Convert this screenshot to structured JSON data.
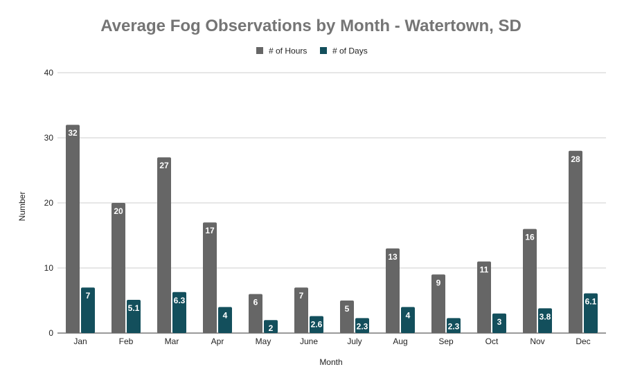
{
  "chart_data": {
    "type": "bar",
    "title": "Average Fog Observations by Month - Watertown, SD",
    "xlabel": "Month",
    "ylabel": "Number",
    "categories": [
      "Jan",
      "Feb",
      "Mar",
      "Apr",
      "May",
      "June",
      "July",
      "Aug",
      "Sep",
      "Oct",
      "Nov",
      "Dec"
    ],
    "series": [
      {
        "name": "# of Hours",
        "color": "#666666",
        "values": [
          32,
          20,
          27,
          17,
          6,
          7,
          5,
          13,
          9,
          11,
          16,
          28
        ]
      },
      {
        "name": "# of Days",
        "color": "#134f5c",
        "values": [
          7,
          5.1,
          6.3,
          4,
          2,
          2.6,
          2.3,
          4,
          2.3,
          3,
          3.8,
          6.1
        ]
      }
    ],
    "ylim": [
      0,
      40
    ],
    "yticks": [
      0,
      10,
      20,
      30,
      40
    ],
    "grid": true,
    "legend_position": "top",
    "data_labels": true
  }
}
